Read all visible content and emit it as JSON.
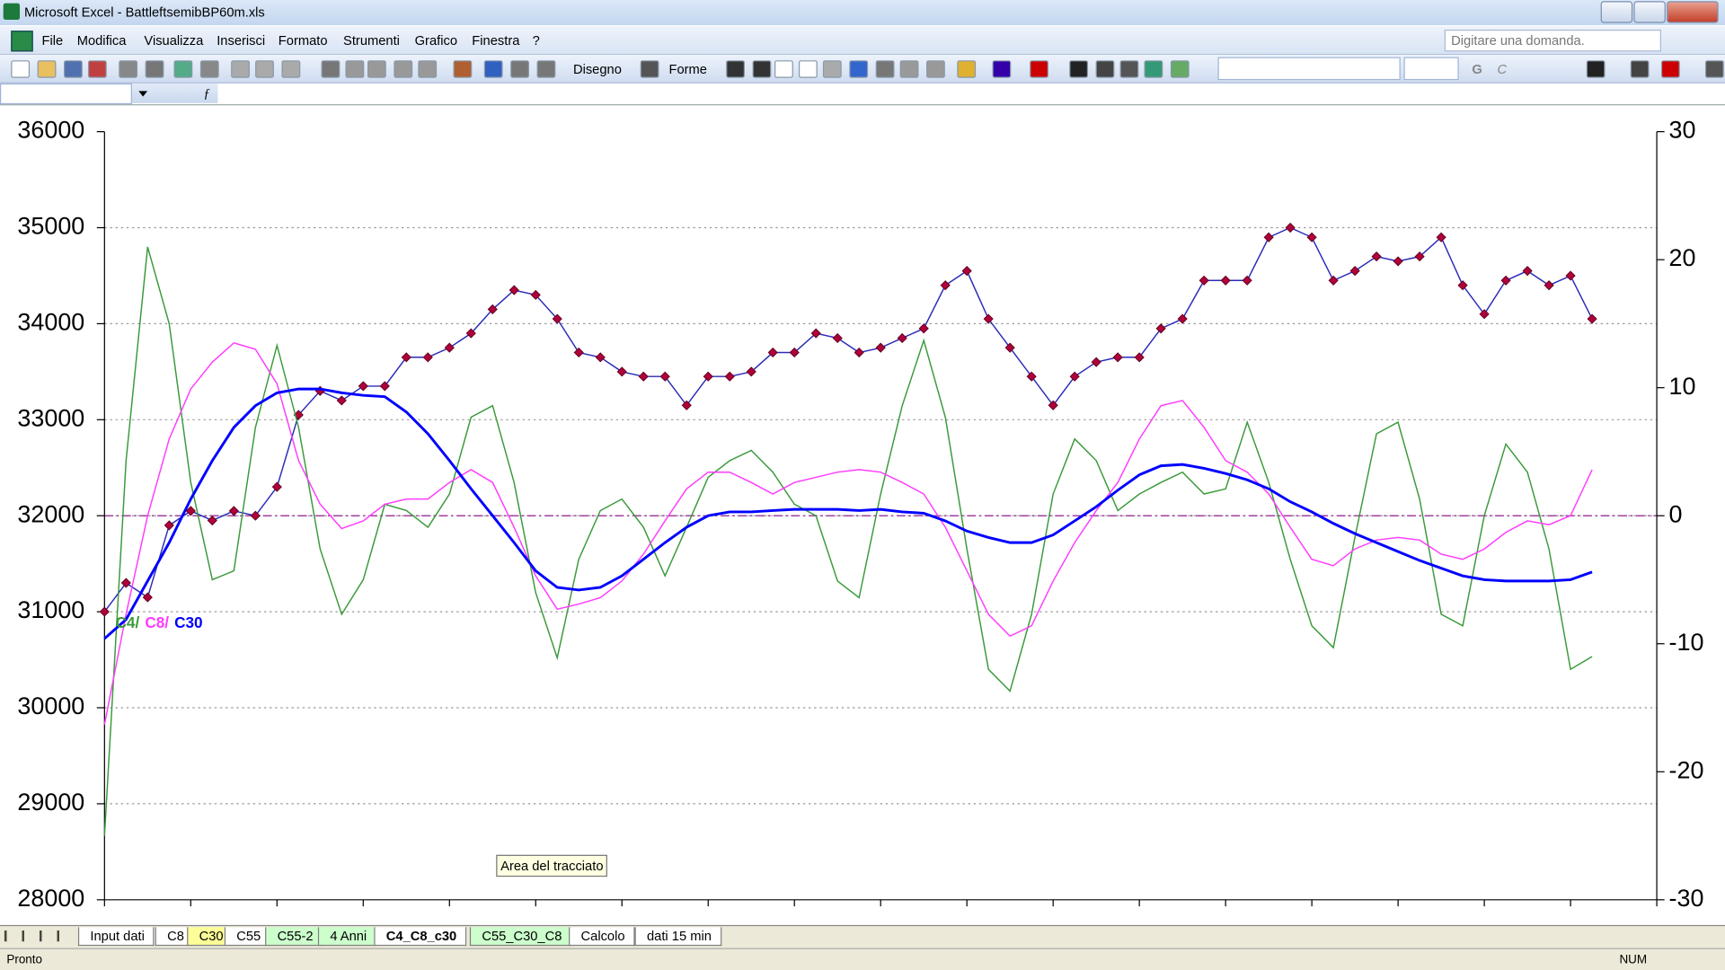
{
  "window": {
    "title": "Microsoft Excel - BattleftsemibBP60m.xls"
  },
  "menu": [
    "File",
    "Modifica",
    "Visualizza",
    "Inserisci",
    "Formato",
    "Strumenti",
    "Grafico",
    "Finestra",
    "?"
  ],
  "help_box": "Digitare una domanda.",
  "toolbar": {
    "draw": "Disegno",
    "shapes": "Forme",
    "bold": "G",
    "italic": "C"
  },
  "tooltip": "Area del tracciato",
  "chart_data": {
    "type": "line",
    "categories": [
      null,
      null,
      null,
      null,
      null,
      null,
      null,
      null,
      null,
      null,
      null,
      null,
      null,
      null,
      null,
      null,
      null,
      null,
      null,
      null,
      null,
      null,
      null,
      null,
      null,
      null,
      null,
      null,
      null,
      null,
      null,
      null,
      null,
      null,
      null,
      null,
      null,
      null,
      null,
      null,
      null,
      null,
      null,
      null,
      null,
      null,
      null,
      null,
      null,
      null,
      null,
      null,
      null,
      null,
      null,
      null,
      null,
      null,
      null,
      null,
      null,
      null,
      null,
      null,
      null,
      null,
      null,
      null,
      null,
      null,
      null,
      null,
      null
    ],
    "series": [
      {
        "color": "#2b2bb8",
        "marker_color": "#b0003a",
        "markers": true,
        "axis": "y",
        "values": [
          31000,
          31300,
          31150,
          31900,
          32050,
          31950,
          32050,
          32000,
          32300,
          33050,
          33300,
          33200,
          33350,
          33350,
          33650,
          33650,
          33750,
          33900,
          34150,
          34350,
          34300,
          34050,
          33700,
          33650,
          33500,
          33450,
          33450,
          33150,
          33450,
          33450,
          33500,
          33700,
          33700,
          33900,
          33850,
          33700,
          33750,
          33850,
          33950,
          34400,
          34550,
          34050,
          33750,
          33450,
          33150,
          33450,
          33600,
          33650,
          33650,
          33950,
          34050,
          34450,
          34450,
          34450,
          34900,
          35000,
          34900,
          34450,
          34550,
          34700,
          34650,
          34700,
          34900,
          34400,
          34100,
          34450,
          34550,
          34400,
          34500,
          34050,
          null,
          null,
          null
        ]
      },
      {
        "name": "C4/",
        "color": "#3a9a3a",
        "axis": "y2",
        "values": [
          -25,
          4.3,
          21,
          15,
          2.6,
          -5,
          -4.3,
          6.9,
          13.3,
          6.9,
          -2.6,
          -7.7,
          -5,
          0.9,
          0.4,
          -0.9,
          1.7,
          7.7,
          8.6,
          2.6,
          -6,
          -11.1,
          -3.4,
          0.4,
          1.3,
          -0.9,
          -4.7,
          -0.9,
          3,
          4.3,
          5.1,
          3.4,
          0.9,
          0,
          -5.1,
          -6.4,
          1.7,
          8.6,
          13.7,
          7.7,
          -2.6,
          -12,
          -13.7,
          -7.7,
          1.7,
          6,
          4.3,
          0.4,
          1.7,
          2.6,
          3.4,
          1.7,
          2.1,
          7.3,
          2.6,
          -3.4,
          -8.6,
          -10.3,
          -1.7,
          6.4,
          7.3,
          1.3,
          -7.7,
          -8.6,
          0,
          5.6,
          3.4,
          -2.6,
          -12,
          -11,
          null,
          null,
          null
        ]
      },
      {
        "name": "C8/",
        "color": "#ff3cff",
        "axis": "y2",
        "values": [
          -16.3,
          -7.7,
          0,
          6,
          9.9,
          12,
          13.5,
          13,
          10.3,
          4.3,
          0.9,
          -1,
          -0.4,
          0.9,
          1.3,
          1.3,
          2.6,
          3.6,
          2.6,
          -0.9,
          -4.7,
          -7.3,
          -6.9,
          -6.4,
          -5.1,
          -3,
          -0.4,
          2.1,
          3.4,
          3.4,
          2.6,
          1.7,
          2.6,
          3,
          3.4,
          3.6,
          3.4,
          2.6,
          1.7,
          -0.9,
          -4.3,
          -7.7,
          -9.4,
          -8.6,
          -5.1,
          -2.1,
          0.4,
          2.6,
          6,
          8.6,
          9,
          6.9,
          4.3,
          3.4,
          1.7,
          -0.9,
          -3.4,
          -3.9,
          -2.6,
          -1.9,
          -1.7,
          -1.9,
          -3,
          -3.4,
          -2.6,
          -1.3,
          -0.4,
          -0.7,
          0,
          3.6,
          null,
          null,
          null
        ]
      },
      {
        "name": "C30",
        "color": "#0000ff",
        "axis": "y2",
        "values": [
          -9.6,
          -8.1,
          -5.1,
          -2.1,
          1.3,
          4.3,
          6.9,
          8.6,
          9.6,
          9.9,
          9.9,
          9.6,
          9.4,
          9.3,
          8.1,
          6.4,
          4.3,
          2.1,
          0,
          -2.1,
          -4.3,
          -5.6,
          -5.8,
          -5.6,
          -4.7,
          -3.4,
          -2.1,
          -0.9,
          0,
          0.3,
          0.3,
          0.4,
          0.5,
          0.5,
          0.5,
          0.4,
          0.5,
          0.3,
          0.2,
          -0.4,
          -1.2,
          -1.7,
          -2.1,
          -2.1,
          -1.5,
          -0.4,
          0.7,
          2,
          3.2,
          3.9,
          4,
          3.7,
          3.3,
          2.8,
          2.1,
          1.1,
          0.3,
          -0.6,
          -1.4,
          -2.1,
          -2.8,
          -3.5,
          -4.1,
          -4.7,
          -5,
          -5.1,
          -5.1,
          -5.1,
          -5,
          -4.4,
          null,
          null,
          null
        ]
      }
    ],
    "ylim": [
      28000,
      36000
    ],
    "yticks": [
      28000,
      29000,
      30000,
      31000,
      32000,
      33000,
      34000,
      35000,
      36000
    ],
    "y2lim": [
      -30,
      30
    ],
    "y2ticks": [
      -30,
      -20,
      -10,
      0,
      10,
      20,
      30
    ],
    "grid": true,
    "zero_line_color": "#a040a0"
  },
  "sheet_tabs": [
    {
      "name": "Input dati",
      "color": "#ffffff"
    },
    {
      "name": "C8",
      "color": "#ffffff"
    },
    {
      "name": "C30",
      "color": "#ffff99"
    },
    {
      "name": "C55",
      "color": "#ffffff"
    },
    {
      "name": "C55-2",
      "color": "#ccffcc"
    },
    {
      "name": "4 Anni",
      "color": "#ccffcc"
    },
    {
      "name": "C4_C8_c30",
      "color": "#ffffff"
    },
    {
      "name": "C55_C30_C8",
      "color": "#ccffcc"
    },
    {
      "name": "Calcolo",
      "color": "#ffffff"
    },
    {
      "name": "dati 15 min",
      "color": "#ffffff"
    }
  ],
  "active_tab": 6,
  "status": {
    "left": "Pronto",
    "mode": "NUM"
  }
}
